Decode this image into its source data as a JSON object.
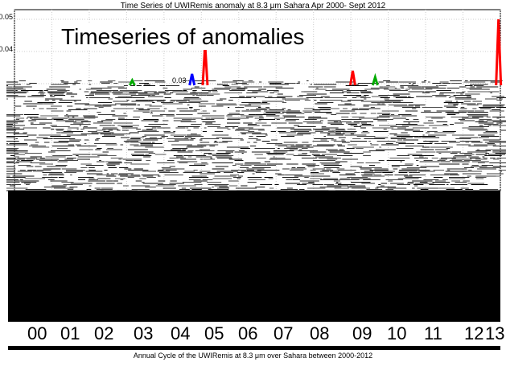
{
  "chart_data": {
    "type": "line",
    "title": "Time Series of UWIRemis anomaly at 8.3 μm  Sahara Apr 2000- Sept 2012",
    "overlay_label": "Timeseries of anomalies",
    "y_ticks": [
      "0.05",
      "0.04",
      "0.03"
    ],
    "ylim": [
      0.025,
      0.05
    ],
    "x_tick_labels": [
      "00",
      "01",
      "02",
      "03",
      "04",
      "05",
      "06",
      "07",
      "08",
      "09",
      "10",
      "11",
      "12",
      "13"
    ],
    "xlim": [
      2000,
      2013
    ],
    "grid": true,
    "series": [
      {
        "color": "#ff0000",
        "x": [
          2005.1,
          2009.05,
          2012.95
        ],
        "values": [
          0.042,
          0.034,
          0.05
        ]
      },
      {
        "color": "#0000ff",
        "x": [
          2004.75
        ],
        "values": [
          0.033
        ]
      },
      {
        "color": "#00aa00",
        "x": [
          2003.15,
          2009.65
        ],
        "values": [
          0.031,
          0.032
        ]
      }
    ],
    "bottom_caption": "Annual Cycle of the  UWIRemis at 8.3 μm over Sahara between 2000-2012"
  }
}
